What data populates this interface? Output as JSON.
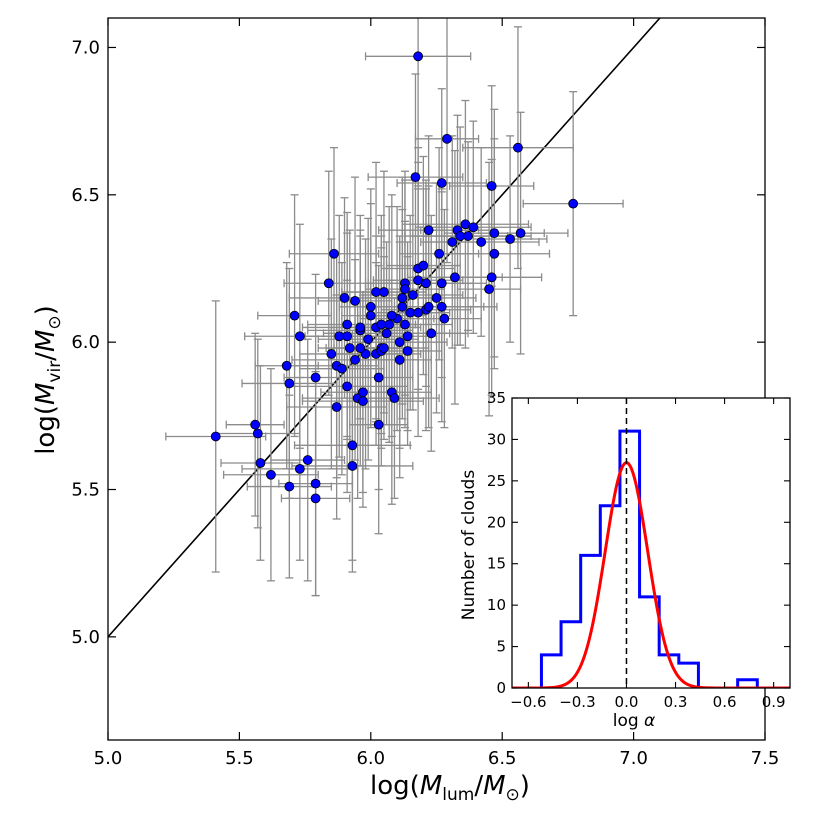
{
  "chart_data": [
    {
      "type": "scatter",
      "xlabel": "log(M_lum/M_⊙)",
      "ylabel": "log(M_vir/M_⊙)",
      "xlim": [
        5.0,
        7.5
      ],
      "ylim": [
        4.65,
        7.1
      ],
      "x_ticks": [
        5.0,
        5.5,
        6.0,
        6.5,
        7.0,
        7.5
      ],
      "x_tick_labels": [
        "5.0",
        "5.5",
        "6.0",
        "6.5",
        "7.0",
        "7.5"
      ],
      "y_ticks": [
        5.0,
        5.5,
        6.0,
        6.5,
        7.0
      ],
      "y_tick_labels": [
        "5.0",
        "5.5",
        "6.0",
        "6.5",
        "7.0"
      ],
      "marker_color": "#0000ff",
      "errorbar_color": "#8c8c8c",
      "fit_line": {
        "slope": 1.0,
        "intercept": 0.0,
        "color": "#000000"
      },
      "series": [
        {
          "name": "clouds",
          "points": [
            [
              5.41,
              5.68,
              0.19,
              0.46
            ],
            [
              5.56,
              5.72,
              0.11,
              0.31
            ],
            [
              5.57,
              5.69,
              0.16,
              0.32
            ],
            [
              5.58,
              5.59,
              0.15,
              0.33
            ],
            [
              5.62,
              5.55,
              0.18,
              0.36
            ],
            [
              5.68,
              5.92,
              0.12,
              0.35
            ],
            [
              5.69,
              5.86,
              0.18,
              0.39
            ],
            [
              5.71,
              6.09,
              0.14,
              0.41
            ],
            [
              5.73,
              6.02,
              0.21,
              0.38
            ],
            [
              5.69,
              5.51,
              0.16,
              0.31
            ],
            [
              5.73,
              5.57,
              0.22,
              0.31
            ],
            [
              5.76,
              5.6,
              0.14,
              0.41
            ],
            [
              5.79,
              5.52,
              0.14,
              0.38
            ],
            [
              5.79,
              5.47,
              0.13,
              0.33
            ],
            [
              5.79,
              5.88,
              0.12,
              0.35
            ],
            [
              5.84,
              6.2,
              0.17,
              0.38
            ],
            [
              5.86,
              6.3,
              0.17,
              0.36
            ],
            [
              5.85,
              5.96,
              0.12,
              0.39
            ],
            [
              5.87,
              5.92,
              0.16,
              0.38
            ],
            [
              5.87,
              5.78,
              0.19,
              0.38
            ],
            [
              5.89,
              5.91,
              0.16,
              0.36
            ],
            [
              5.9,
              6.15,
              0.21,
              0.34
            ],
            [
              5.91,
              5.85,
              0.23,
              0.36
            ],
            [
              5.92,
              5.98,
              0.12,
              0.4
            ],
            [
              5.93,
              5.58,
              0.23,
              0.36
            ],
            [
              5.93,
              5.65,
              0.22,
              0.39
            ],
            [
              5.94,
              6.14,
              0.14,
              0.42
            ],
            [
              5.94,
              5.94,
              0.24,
              0.34
            ],
            [
              5.95,
              5.81,
              0.21,
              0.34
            ],
            [
              5.96,
              6.04,
              0.2,
              0.39
            ],
            [
              5.96,
              6.05,
              0.22,
              0.31
            ],
            [
              5.97,
              5.8,
              0.23,
              0.36
            ],
            [
              5.97,
              5.83,
              0.16,
              0.34
            ],
            [
              5.98,
              5.96,
              0.14,
              0.39
            ],
            [
              5.99,
              6.01,
              0.19,
              0.41
            ],
            [
              6.0,
              6.12,
              0.12,
              0.4
            ],
            [
              6.02,
              6.05,
              0.17,
              0.31
            ],
            [
              6.02,
              6.17,
              0.13,
              0.44
            ],
            [
              6.02,
              5.96,
              0.17,
              0.31
            ],
            [
              6.03,
              5.88,
              0.13,
              0.38
            ],
            [
              6.03,
              5.72,
              0.11,
              0.37
            ],
            [
              6.04,
              5.98,
              0.18,
              0.34
            ],
            [
              6.04,
              5.97,
              0.11,
              0.39
            ],
            [
              6.05,
              6.17,
              0.16,
              0.41
            ],
            [
              6.06,
              6.03,
              0.24,
              0.31
            ],
            [
              6.07,
              6.06,
              0.11,
              0.4
            ],
            [
              6.08,
              5.83,
              0.15,
              0.38
            ],
            [
              6.09,
              5.81,
              0.17,
              0.34
            ],
            [
              6.1,
              6.08,
              0.14,
              0.38
            ],
            [
              6.11,
              6.0,
              0.18,
              0.36
            ],
            [
              6.11,
              5.94,
              0.12,
              0.4
            ],
            [
              6.12,
              6.15,
              0.14,
              0.41
            ],
            [
              6.12,
              6.12,
              0.15,
              0.33
            ],
            [
              6.13,
              6.2,
              0.14,
              0.38
            ],
            [
              6.13,
              6.18,
              0.15,
              0.37
            ],
            [
              6.14,
              6.02,
              0.11,
              0.32
            ],
            [
              6.14,
              5.97,
              0.13,
              0.32
            ],
            [
              6.15,
              6.1,
              0.13,
              0.33
            ],
            [
              6.16,
              6.16,
              0.19,
              0.39
            ],
            [
              6.17,
              6.56,
              0.18,
              0.35
            ],
            [
              6.18,
              6.97,
              0.2,
              0.44
            ],
            [
              6.18,
              6.25,
              0.14,
              0.41
            ],
            [
              6.18,
              6.21,
              0.17,
              0.4
            ],
            [
              6.2,
              6.26,
              0.14,
              0.37
            ],
            [
              6.21,
              6.11,
              0.17,
              0.41
            ],
            [
              6.21,
              6.2,
              0.23,
              0.35
            ],
            [
              6.22,
              6.38,
              0.19,
              0.32
            ],
            [
              6.23,
              6.03,
              0.14,
              0.4
            ],
            [
              6.25,
              6.15,
              0.15,
              0.39
            ],
            [
              6.26,
              6.3,
              0.15,
              0.36
            ],
            [
              6.27,
              6.54,
              0.17,
              0.32
            ],
            [
              6.27,
              6.12,
              0.21,
              0.39
            ],
            [
              6.28,
              6.08,
              0.14,
              0.37
            ],
            [
              6.29,
              6.69,
              0.12,
              0.42
            ],
            [
              6.31,
              6.34,
              0.12,
              0.36
            ],
            [
              6.32,
              6.22,
              0.18,
              0.43
            ],
            [
              6.33,
              6.38,
              0.14,
              0.39
            ],
            [
              6.34,
              6.36,
              0.18,
              0.37
            ],
            [
              6.36,
              6.4,
              0.24,
              0.42
            ],
            [
              6.37,
              6.36,
              0.24,
              0.32
            ],
            [
              6.39,
              6.39,
              0.22,
              0.36
            ],
            [
              6.42,
              6.34,
              0.22,
              0.32
            ],
            [
              6.45,
              6.18,
              0.12,
              0.43
            ],
            [
              6.46,
              6.22,
              0.19,
              0.4
            ],
            [
              6.46,
              6.53,
              0.16,
              0.34
            ],
            [
              6.47,
              6.3,
              0.21,
              0.39
            ],
            [
              6.47,
              6.37,
              0.19,
              0.42
            ],
            [
              6.53,
              6.35,
              0.14,
              0.35
            ],
            [
              6.56,
              6.66,
              0.21,
              0.41
            ],
            [
              6.57,
              6.37,
              0.18,
              0.41
            ],
            [
              6.77,
              6.47,
              0.19,
              0.38
            ],
            [
              6.0,
              6.09,
              0.11,
              0.38
            ],
            [
              5.91,
              6.06,
              0.15,
              0.38
            ],
            [
              5.91,
              6.02,
              0.16,
              0.35
            ],
            [
              5.88,
              6.02,
              0.15,
              0.41
            ],
            [
              5.96,
              5.98,
              0.13,
              0.4
            ],
            [
              6.04,
              6.06,
              0.13,
              0.37
            ],
            [
              6.08,
              6.09,
              0.13,
              0.41
            ],
            [
              6.13,
              6.06,
              0.18,
              0.35
            ],
            [
              6.18,
              6.1,
              0.12,
              0.42
            ],
            [
              6.05,
              5.98,
              0.13,
              0.31
            ],
            [
              6.22,
              6.12,
              0.21,
              0.41
            ],
            [
              6.27,
              6.2,
              0.12,
              0.32
            ]
          ]
        }
      ]
    },
    {
      "type": "histogram",
      "xlabel": "log α",
      "ylabel": "Number of clouds",
      "xlim": [
        -0.7,
        1.0
      ],
      "ylim": [
        0,
        35
      ],
      "x_ticks": [
        -0.6,
        -0.3,
        0.0,
        0.3,
        0.6,
        0.9
      ],
      "x_tick_labels": [
        "−0.6",
        "−0.3",
        "0.0",
        "0.3",
        "0.6",
        "0.9"
      ],
      "y_ticks": [
        0,
        5,
        10,
        15,
        20,
        25,
        30,
        35
      ],
      "y_tick_labels": [
        "0",
        "5",
        "10",
        "15",
        "20",
        "25",
        "30",
        "35"
      ],
      "bin_edges": [
        -0.52,
        -0.4,
        -0.28,
        -0.16,
        -0.04,
        0.08,
        0.2,
        0.32,
        0.44,
        0.56,
        0.68,
        0.8
      ],
      "counts": [
        4,
        8,
        16,
        22,
        31,
        11,
        4,
        3,
        0,
        0,
        1
      ],
      "hist_color": "#0000ff",
      "gaussian_fit": {
        "amplitude": 27.2,
        "mean": 0.0,
        "sigma": 0.13,
        "color": "#ff0000"
      },
      "vline_x": 0.0,
      "vline_color": "#000000"
    }
  ]
}
